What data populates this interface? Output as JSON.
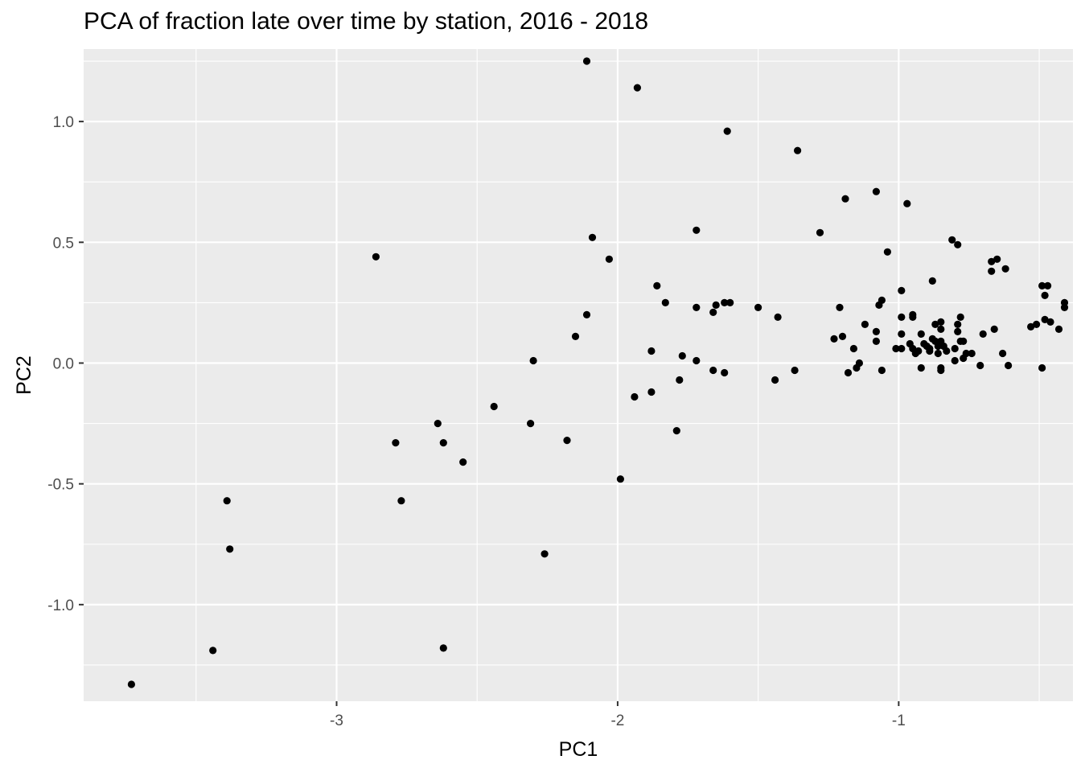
{
  "chart_data": {
    "type": "scatter",
    "title": "PCA of fraction late over time by station, 2016 - 2018",
    "xlabel": "PC1",
    "ylabel": "PC2",
    "xlim": [
      -3.9,
      -0.38
    ],
    "ylim": [
      -1.4,
      1.3
    ],
    "x_ticks": [
      -3,
      -2,
      -1
    ],
    "x_tick_labels": [
      "-3",
      "-2",
      "-1"
    ],
    "y_ticks": [
      -1.0,
      -0.5,
      0.0,
      0.5,
      1.0
    ],
    "y_tick_labels": [
      "-1.0",
      "-0.5",
      "0.0",
      "0.5",
      "1.0"
    ],
    "grid": true,
    "background": "#ebebeb",
    "point_color": "#000000",
    "points": [
      [
        -3.73,
        -1.33
      ],
      [
        -3.44,
        -1.19
      ],
      [
        -3.39,
        -0.57
      ],
      [
        -3.38,
        -0.77
      ],
      [
        -2.86,
        0.44
      ],
      [
        -2.79,
        -0.33
      ],
      [
        -2.77,
        -0.57
      ],
      [
        -2.64,
        -0.25
      ],
      [
        -2.62,
        -0.33
      ],
      [
        -2.62,
        -1.18
      ],
      [
        -2.55,
        -0.41
      ],
      [
        -2.44,
        -0.18
      ],
      [
        -2.31,
        -0.25
      ],
      [
        -2.3,
        0.01
      ],
      [
        -2.26,
        -0.79
      ],
      [
        -2.18,
        -0.32
      ],
      [
        -2.15,
        0.11
      ],
      [
        -2.11,
        1.25
      ],
      [
        -2.11,
        0.2
      ],
      [
        -2.09,
        0.52
      ],
      [
        -2.03,
        0.43
      ],
      [
        -1.99,
        -0.48
      ],
      [
        -1.94,
        -0.14
      ],
      [
        -1.93,
        1.14
      ],
      [
        -1.88,
        0.05
      ],
      [
        -1.88,
        -0.12
      ],
      [
        -1.86,
        0.32
      ],
      [
        -1.83,
        0.25
      ],
      [
        -1.79,
        -0.28
      ],
      [
        -1.78,
        -0.07
      ],
      [
        -1.77,
        0.03
      ],
      [
        -1.72,
        0.55
      ],
      [
        -1.72,
        0.23
      ],
      [
        -1.72,
        0.01
      ],
      [
        -1.66,
        0.21
      ],
      [
        -1.66,
        -0.03
      ],
      [
        -1.65,
        0.24
      ],
      [
        -1.62,
        0.25
      ],
      [
        -1.62,
        -0.04
      ],
      [
        -1.61,
        0.96
      ],
      [
        -1.6,
        0.25
      ],
      [
        -1.5,
        0.23
      ],
      [
        -1.44,
        -0.07
      ],
      [
        -1.43,
        0.19
      ],
      [
        -1.37,
        -0.03
      ],
      [
        -1.36,
        0.88
      ],
      [
        -1.28,
        0.54
      ],
      [
        -1.23,
        0.1
      ],
      [
        -1.21,
        0.23
      ],
      [
        -1.2,
        0.11
      ],
      [
        -1.19,
        0.68
      ],
      [
        -1.18,
        -0.04
      ],
      [
        -1.16,
        0.06
      ],
      [
        -1.15,
        -0.02
      ],
      [
        -1.14,
        0.0
      ],
      [
        -1.12,
        0.16
      ],
      [
        -1.08,
        0.71
      ],
      [
        -1.08,
        0.13
      ],
      [
        -1.08,
        0.09
      ],
      [
        -1.07,
        0.24
      ],
      [
        -1.06,
        0.26
      ],
      [
        -1.06,
        -0.03
      ],
      [
        -1.04,
        0.46
      ],
      [
        -1.01,
        0.06
      ],
      [
        -0.99,
        0.19
      ],
      [
        -0.99,
        0.3
      ],
      [
        -0.99,
        0.12
      ],
      [
        -0.99,
        0.06
      ],
      [
        -0.97,
        0.66
      ],
      [
        -0.96,
        0.08
      ],
      [
        -0.95,
        0.19
      ],
      [
        -0.95,
        0.2
      ],
      [
        -0.95,
        0.06
      ],
      [
        -0.94,
        0.04
      ],
      [
        -0.93,
        0.05
      ],
      [
        -0.92,
        -0.02
      ],
      [
        -0.92,
        0.12
      ],
      [
        -0.91,
        0.08
      ],
      [
        -0.9,
        0.07
      ],
      [
        -0.89,
        0.05
      ],
      [
        -0.89,
        0.06
      ],
      [
        -0.88,
        0.1
      ],
      [
        -0.88,
        0.34
      ],
      [
        -0.87,
        0.16
      ],
      [
        -0.87,
        0.09
      ],
      [
        -0.86,
        0.07
      ],
      [
        -0.86,
        0.04
      ],
      [
        -0.85,
        0.14
      ],
      [
        -0.85,
        0.17
      ],
      [
        -0.85,
        0.09
      ],
      [
        -0.85,
        -0.03
      ],
      [
        -0.85,
        -0.02
      ],
      [
        -0.84,
        0.07
      ],
      [
        -0.83,
        0.05
      ],
      [
        -0.81,
        0.51
      ],
      [
        -0.8,
        0.01
      ],
      [
        -0.8,
        0.06
      ],
      [
        -0.79,
        0.13
      ],
      [
        -0.79,
        0.16
      ],
      [
        -0.79,
        0.49
      ],
      [
        -0.78,
        0.09
      ],
      [
        -0.78,
        0.19
      ],
      [
        -0.77,
        0.02
      ],
      [
        -0.77,
        0.09
      ],
      [
        -0.76,
        0.04
      ],
      [
        -0.74,
        0.04
      ],
      [
        -0.71,
        -0.01
      ],
      [
        -0.7,
        0.12
      ],
      [
        -0.67,
        0.42
      ],
      [
        -0.67,
        0.38
      ],
      [
        -0.66,
        0.14
      ],
      [
        -0.65,
        0.43
      ],
      [
        -0.63,
        0.04
      ],
      [
        -0.62,
        0.39
      ],
      [
        -0.61,
        -0.01
      ],
      [
        -0.53,
        0.15
      ],
      [
        -0.51,
        0.16
      ],
      [
        -0.49,
        -0.02
      ],
      [
        -0.49,
        0.32
      ],
      [
        -0.48,
        0.28
      ],
      [
        -0.48,
        0.18
      ],
      [
        -0.47,
        0.32
      ],
      [
        -0.46,
        0.17
      ],
      [
        -0.43,
        0.14
      ],
      [
        -0.41,
        0.25
      ],
      [
        -0.41,
        0.23
      ]
    ]
  }
}
